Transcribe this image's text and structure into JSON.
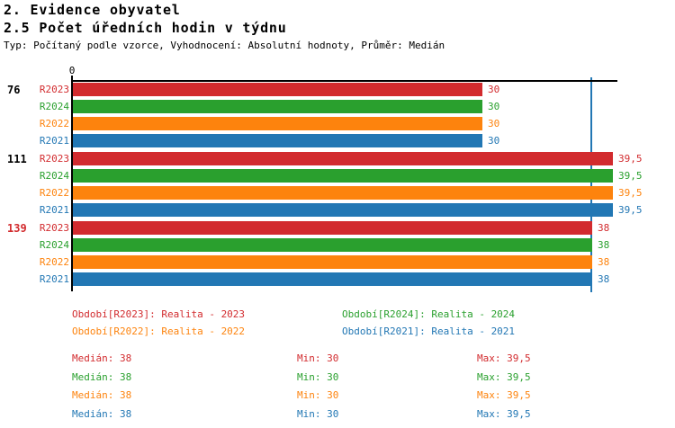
{
  "header": {
    "title_line1": "2. Evidence obyvatel",
    "title_line2": "2.5 Počet úředních hodin v týdnu",
    "subtitle": "Typ: Počítaný podle vzorce, Vyhodnocení: Absolutní hodnoty, Průměr: Medián"
  },
  "colors": {
    "R2023": "#d22b2e",
    "R2024": "#2aa02e",
    "R2022": "#fd830d",
    "R2021": "#2277b4",
    "median_line": "#2277b4",
    "axis": "#000000"
  },
  "chart_data": {
    "type": "bar",
    "orientation": "horizontal",
    "title": "2.5 Počet úředních hodin v týdnu",
    "xlim": [
      0,
      40
    ],
    "x_ticks": [
      "0"
    ],
    "axis": {
      "origin_label": "0"
    },
    "median_line": 38,
    "series_order": [
      "R2023",
      "R2024",
      "R2022",
      "R2021"
    ],
    "groups": [
      {
        "label": "76",
        "label_color": "#000000",
        "bars": [
          {
            "name": "R2023",
            "value": 30,
            "display": "30"
          },
          {
            "name": "R2024",
            "value": 30,
            "display": "30"
          },
          {
            "name": "R2022",
            "value": 30,
            "display": "30"
          },
          {
            "name": "R2021",
            "value": 30,
            "display": "30"
          }
        ]
      },
      {
        "label": "111",
        "label_color": "#000000",
        "bars": [
          {
            "name": "R2023",
            "value": 39.5,
            "display": "39,5"
          },
          {
            "name": "R2024",
            "value": 39.5,
            "display": "39,5"
          },
          {
            "name": "R2022",
            "value": 39.5,
            "display": "39,5"
          },
          {
            "name": "R2021",
            "value": 39.5,
            "display": "39,5"
          }
        ]
      },
      {
        "label": "139",
        "label_color": "#d22b2e",
        "bars": [
          {
            "name": "R2023",
            "value": 38,
            "display": "38"
          },
          {
            "name": "R2024",
            "value": 38,
            "display": "38"
          },
          {
            "name": "R2022",
            "value": 38,
            "display": "38"
          },
          {
            "name": "R2021",
            "value": 38,
            "display": "38"
          }
        ]
      }
    ]
  },
  "legend": {
    "items": [
      {
        "id": "R2023",
        "label": "Období[R2023]: Realita - 2023"
      },
      {
        "id": "R2024",
        "label": "Období[R2024]: Realita - 2024"
      },
      {
        "id": "R2022",
        "label": "Období[R2022]: Realita - 2022"
      },
      {
        "id": "R2021",
        "label": "Období[R2021]: Realita - 2021"
      }
    ]
  },
  "stats": {
    "rows": [
      {
        "id": "R2023",
        "median": "Medián: 38",
        "min": "Min: 30",
        "max": "Max: 39,5"
      },
      {
        "id": "R2024",
        "median": "Medián: 38",
        "min": "Min: 30",
        "max": "Max: 39,5"
      },
      {
        "id": "R2022",
        "median": "Medián: 38",
        "min": "Min: 30",
        "max": "Max: 39,5"
      },
      {
        "id": "R2021",
        "median": "Medián: 38",
        "min": "Min: 30",
        "max": "Max: 39,5"
      }
    ]
  }
}
